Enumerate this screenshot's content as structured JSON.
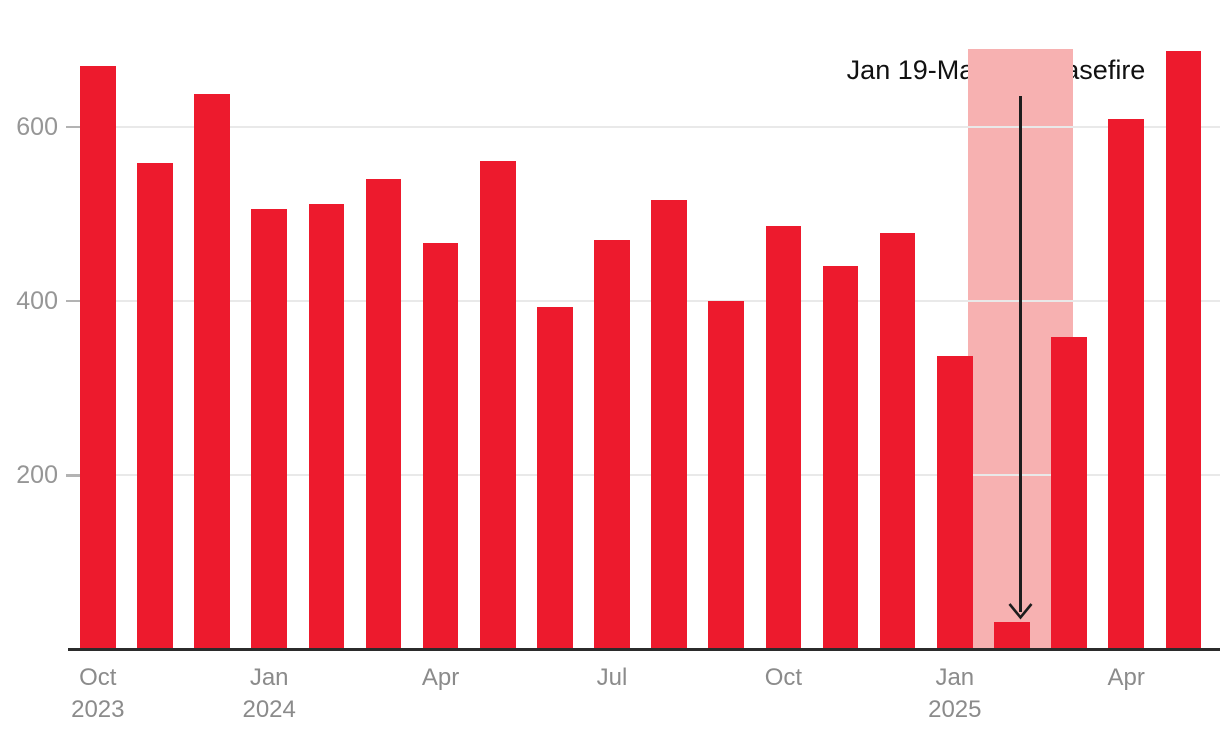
{
  "chart_data": {
    "type": "bar",
    "categories": [
      "Oct 2023",
      "Nov 2023",
      "Dec 2023",
      "Jan 2024",
      "Feb 2024",
      "Mar 2024",
      "Apr 2024",
      "May 2024",
      "Jun 2024",
      "Jul 2024",
      "Aug 2024",
      "Sep 2024",
      "Oct 2024",
      "Nov 2024",
      "Dec 2024",
      "Jan 2025",
      "Feb 2025",
      "Mar 2025",
      "Apr 2025",
      "May 2025"
    ],
    "values": [
      670,
      559,
      638,
      506,
      512,
      540,
      467,
      561,
      393,
      470,
      516,
      400,
      487,
      441,
      478,
      337,
      32,
      359,
      610,
      688
    ],
    "ylim": [
      0,
      700
    ],
    "yticks": [
      200,
      400,
      600
    ],
    "grid": "horizontal",
    "x_tick_labels": [
      {
        "index": 0,
        "line1": "Oct",
        "line2": "2023"
      },
      {
        "index": 3,
        "line1": "Jan",
        "line2": "2024"
      },
      {
        "index": 6,
        "line1": "Apr",
        "line2": ""
      },
      {
        "index": 9,
        "line1": "Jul",
        "line2": ""
      },
      {
        "index": 12,
        "line1": "Oct",
        "line2": ""
      },
      {
        "index": 15,
        "line1": "Jan",
        "line2": "2025"
      },
      {
        "index": 18,
        "line1": "Apr",
        "line2": ""
      }
    ],
    "annotation": {
      "label": "Jan 19-Mar 18: ceasefire",
      "band_from": "Jan 19",
      "band_to": "Mar 18",
      "arrow_points_to_category": "Feb 2025"
    }
  },
  "colors": {
    "bar": "#ED1A2D",
    "band": "#F7B1B1",
    "gridline": "#E9E9E9",
    "tick": "#B3B3B3",
    "axis_line": "#2B2B2B",
    "y_label": "#969696",
    "x_label": "#8B8B8B",
    "annotation_text": "#111111",
    "arrow": "#1D1D1D",
    "background": "#FFFFFF"
  }
}
